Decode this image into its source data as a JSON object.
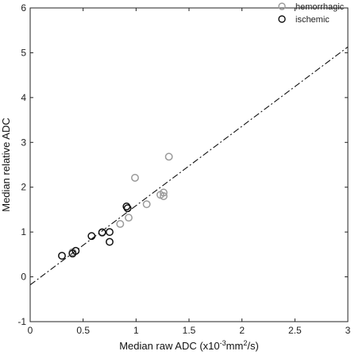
{
  "chart_data": {
    "type": "scatter",
    "xlabel_main": "Median raw ADC (x10",
    "xlabel_exp": "-3",
    "xlabel_unit": "mm",
    "xlabel_unit_exp": "2",
    "xlabel_tail": "/s)",
    "ylabel": "Median relative ADC",
    "xlim": [
      0,
      3
    ],
    "ylim": [
      -1,
      6
    ],
    "x_ticks": [
      "0",
      "0.5",
      "1",
      "1.5",
      "2",
      "2.5",
      "3"
    ],
    "y_ticks": [
      "-1",
      "0",
      "1",
      "2",
      "3",
      "4",
      "5",
      "6"
    ],
    "x_tick_values": [
      0,
      0.5,
      1,
      1.5,
      2,
      2.5,
      3
    ],
    "y_tick_values": [
      -1,
      0,
      1,
      2,
      3,
      4,
      5,
      6
    ],
    "grid": false,
    "legend_position": "top-right",
    "series": [
      {
        "name": "hemorrhagic",
        "color": "#9a9a9a",
        "marker": "open-circle",
        "points": [
          [
            0.85,
            1.18
          ],
          [
            0.93,
            1.32
          ],
          [
            0.99,
            2.21
          ],
          [
            1.1,
            1.62
          ],
          [
            1.23,
            1.83
          ],
          [
            1.26,
            1.88
          ],
          [
            1.26,
            1.8
          ],
          [
            1.31,
            2.68
          ],
          [
            0.68,
            1.0
          ],
          [
            0.4,
            0.55
          ]
        ]
      },
      {
        "name": "ischemic",
        "color": "#111111",
        "marker": "open-circle",
        "points": [
          [
            0.3,
            0.47
          ],
          [
            0.4,
            0.52
          ],
          [
            0.43,
            0.58
          ],
          [
            0.58,
            0.91
          ],
          [
            0.68,
            0.99
          ],
          [
            0.75,
            1.0
          ],
          [
            0.75,
            0.78
          ],
          [
            0.91,
            1.57
          ],
          [
            0.92,
            1.53
          ]
        ]
      }
    ],
    "fit_line": {
      "style": "dash-dot",
      "color": "#111111",
      "intercept": -0.18,
      "slope": 1.77
    }
  }
}
